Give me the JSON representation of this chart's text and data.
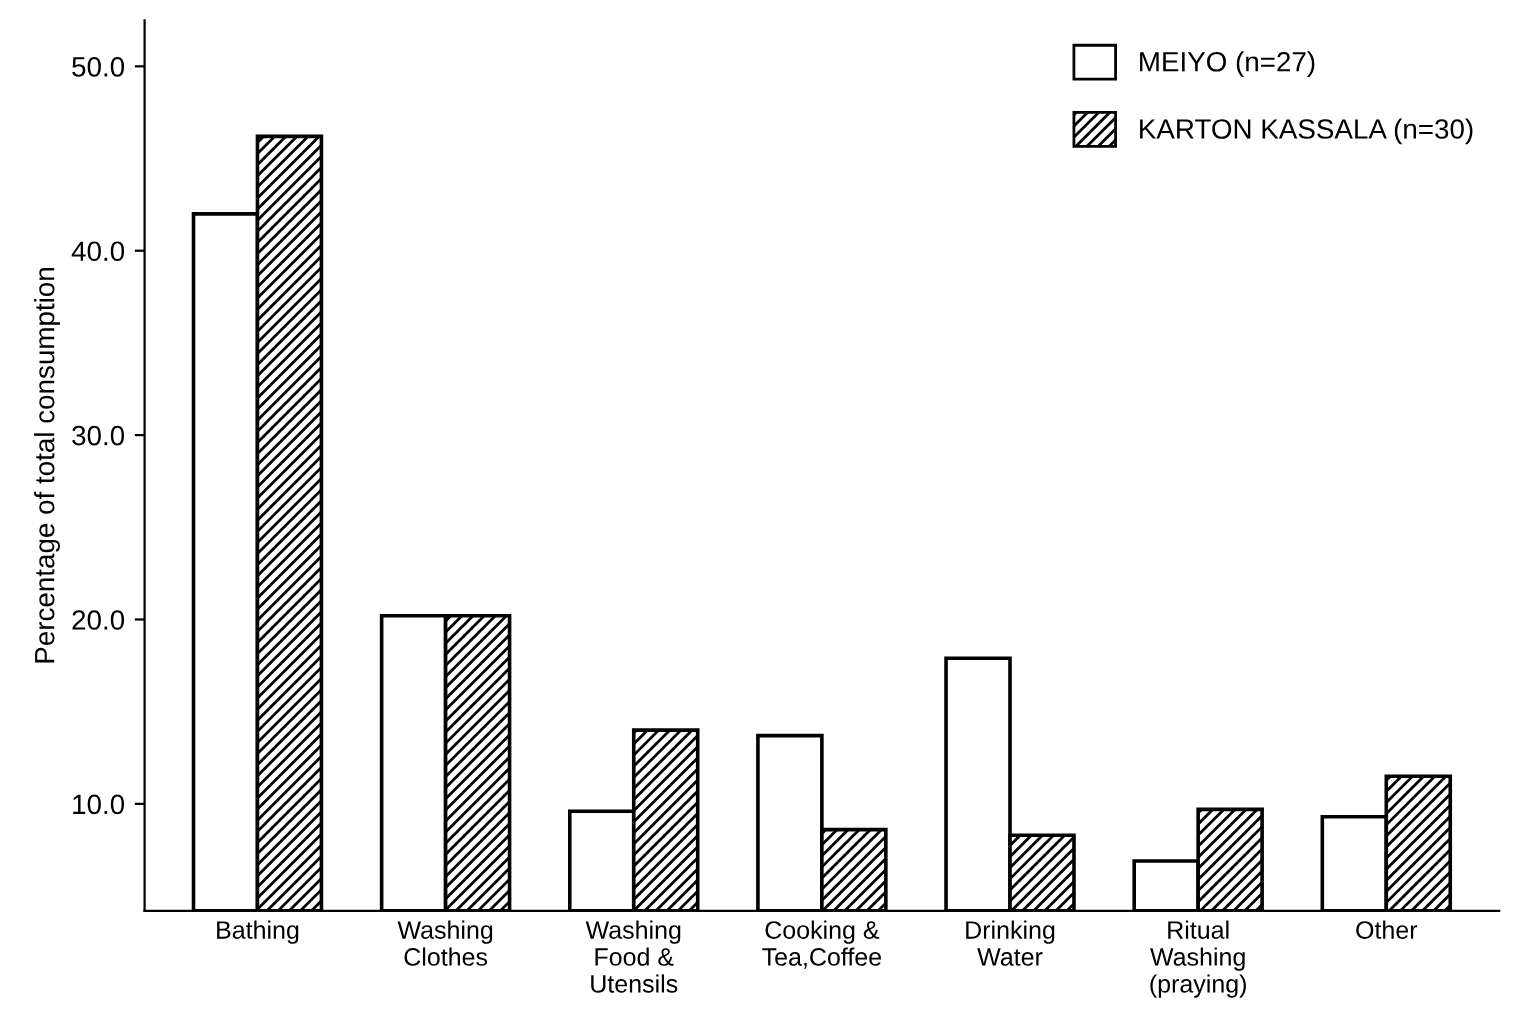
{
  "chart_data": {
    "type": "bar",
    "ylabel": "Percentage of total consumption",
    "categories": [
      "Bathing",
      "Washing\nClothes",
      "Washing\nFood &\nUtensils",
      "Cooking &\nTea,Coffee",
      "Drinking\nWater",
      "Ritual\nWashing\n(praying)",
      "Other"
    ],
    "series": [
      {
        "name": "MEIYO (n=27)",
        "color": "#ffffff",
        "values": [
          42.0,
          20.2,
          9.6,
          13.7,
          17.9,
          6.9,
          9.3
        ]
      },
      {
        "name": "KARTON KASSALA (n=30)",
        "color": "#000000",
        "values": [
          46.2,
          20.2,
          14.0,
          8.6,
          8.3,
          9.7,
          11.5
        ]
      }
    ],
    "ylim": [
      4.2,
      52.5
    ],
    "yticks": [
      {
        "value": 10,
        "label": "10.0"
      },
      {
        "value": 20,
        "label": "20.0"
      },
      {
        "value": 30,
        "label": "30.0"
      },
      {
        "value": 40,
        "label": "40.0"
      },
      {
        "value": 50,
        "label": "50.0"
      }
    ],
    "grid": false,
    "legend": "top right"
  }
}
